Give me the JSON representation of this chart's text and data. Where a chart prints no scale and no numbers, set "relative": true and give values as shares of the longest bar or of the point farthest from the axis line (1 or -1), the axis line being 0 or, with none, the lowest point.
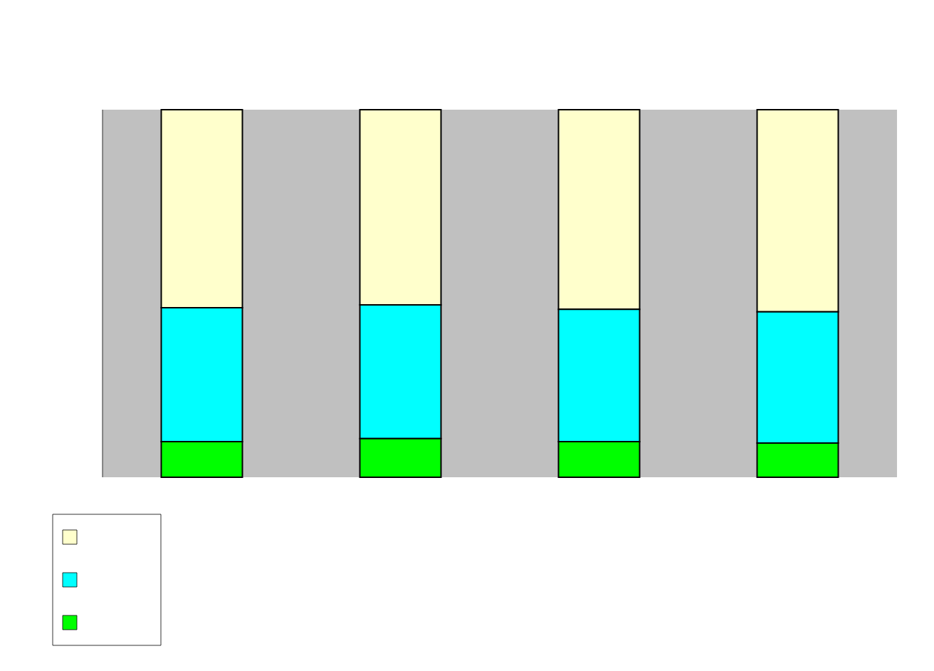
{
  "chart_data": {
    "type": "bar",
    "stacked": true,
    "relative": true,
    "categories": [
      null,
      null,
      null,
      null
    ],
    "series": [
      {
        "color": "#00ff00",
        "values": [
          0.097,
          0.105,
          0.097,
          0.093
        ]
      },
      {
        "color": "#00ffff",
        "values": [
          0.364,
          0.364,
          0.36,
          0.357
        ]
      },
      {
        "color": "#ffffcc",
        "values": [
          0.539,
          0.531,
          0.543,
          0.55
        ]
      }
    ]
  }
}
